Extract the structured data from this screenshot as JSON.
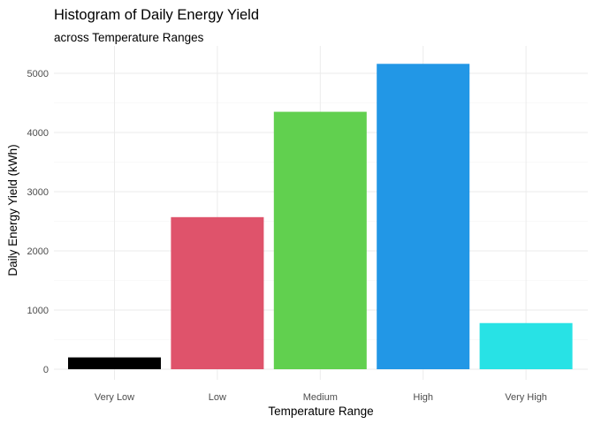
{
  "chart_data": {
    "type": "bar",
    "title": "Histogram of Daily Energy Yield",
    "subtitle": "across Temperature Ranges",
    "xlabel": "Temperature Range",
    "ylabel": "Daily Energy Yield (kWh)",
    "categories": [
      "Very Low",
      "Low",
      "Medium",
      "High",
      "Very High"
    ],
    "values": [
      200,
      2570,
      4350,
      5160,
      780
    ],
    "colors": [
      "#000000",
      "#df536b",
      "#61d04f",
      "#2297e6",
      "#28e2e5"
    ],
    "y_ticks": [
      0,
      1000,
      2000,
      3000,
      4000,
      5000
    ],
    "y_tick_labels": [
      "0",
      "1000",
      "2000",
      "3000",
      "4000",
      "5000"
    ],
    "ylim": [
      0,
      5400
    ],
    "grid": true,
    "legend": "none"
  }
}
